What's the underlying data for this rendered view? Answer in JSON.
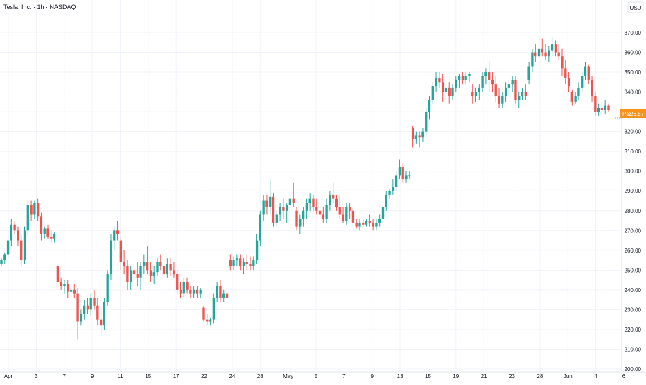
{
  "header": {
    "symbol_title": "Tesla, Inc. · 1h · NASDAQ",
    "currency": "USD"
  },
  "price_badge": {
    "label": "Pre",
    "value": "326.87"
  },
  "colors": {
    "up": "#26a69a",
    "down": "#ef5350",
    "pre_badge": "#f7931a",
    "grid": "#f0f3fa",
    "axis_text": "#131722"
  },
  "chart_data": {
    "type": "candlestick",
    "ylim": [
      200,
      375
    ],
    "y_ticks": [
      200,
      210,
      220,
      230,
      240,
      250,
      260,
      270,
      280,
      290,
      300,
      310,
      320,
      330,
      340,
      350,
      360,
      370
    ],
    "y_tick_labels": [
      "200.00",
      "210.00",
      "220.00",
      "230.00",
      "240.00",
      "250.00",
      "260.00",
      "270.00",
      "280.00",
      "290.00",
      "300.00",
      "310.00",
      "320.00",
      "330.00",
      "340.00",
      "350.00",
      "360.00",
      "370.00"
    ],
    "x_labels": [
      "Apr",
      "3",
      "7",
      "9",
      "11",
      "15",
      "17",
      "22",
      "24",
      "28",
      "May",
      "5",
      "7",
      "9",
      "13",
      "15",
      "19",
      "21",
      "23",
      "28",
      "Jun",
      "4",
      "6"
    ],
    "last_price": 326.87,
    "grid": true,
    "candles": [
      [
        253,
        256,
        252,
        255
      ],
      [
        255,
        259,
        253,
        258
      ],
      [
        258,
        267,
        256,
        265
      ],
      [
        265,
        276,
        262,
        273
      ],
      [
        273,
        275,
        268,
        270
      ],
      [
        270,
        272,
        262,
        265
      ],
      [
        265,
        268,
        252,
        255
      ],
      [
        255,
        272,
        253,
        270
      ],
      [
        270,
        285,
        268,
        283
      ],
      [
        283,
        285,
        275,
        278
      ],
      [
        278,
        285,
        276,
        284
      ],
      [
        284,
        286,
        275,
        277
      ],
      [
        277,
        279,
        265,
        268
      ],
      [
        268,
        272,
        266,
        271
      ],
      [
        271,
        273,
        266,
        267
      ],
      [
        267,
        270,
        264,
        266
      ],
      [
        266,
        269,
        264,
        268
      ],
      [
        252,
        253,
        242,
        244
      ],
      [
        244,
        246,
        240,
        242
      ],
      [
        242,
        245,
        238,
        243
      ],
      [
        243,
        245,
        236,
        239
      ],
      [
        239,
        242,
        235,
        240
      ],
      [
        240,
        243,
        236,
        238
      ],
      [
        238,
        241,
        215,
        224
      ],
      [
        224,
        230,
        222,
        228
      ],
      [
        228,
        235,
        225,
        232
      ],
      [
        232,
        236,
        228,
        230
      ],
      [
        230,
        238,
        227,
        236
      ],
      [
        236,
        240,
        230,
        232
      ],
      [
        232,
        236,
        222,
        225
      ],
      [
        225,
        230,
        218,
        222
      ],
      [
        222,
        236,
        220,
        234
      ],
      [
        234,
        250,
        232,
        248
      ],
      [
        248,
        268,
        245,
        265
      ],
      [
        265,
        272,
        260,
        270
      ],
      [
        270,
        275,
        265,
        268
      ],
      [
        265,
        267,
        250,
        254
      ],
      [
        254,
        260,
        248,
        252
      ],
      [
        252,
        255,
        240,
        244
      ],
      [
        244,
        252,
        240,
        250
      ],
      [
        250,
        256,
        246,
        248
      ],
      [
        248,
        254,
        242,
        246
      ],
      [
        246,
        254,
        240,
        252
      ],
      [
        252,
        258,
        248,
        254
      ],
      [
        254,
        262,
        248,
        250
      ],
      [
        250,
        254,
        244,
        247
      ],
      [
        247,
        252,
        243,
        249
      ],
      [
        249,
        256,
        247,
        254
      ],
      [
        254,
        258,
        250,
        252
      ],
      [
        252,
        255,
        246,
        248
      ],
      [
        248,
        256,
        246,
        253
      ],
      [
        253,
        256,
        247,
        250
      ],
      [
        250,
        254,
        246,
        248
      ],
      [
        248,
        250,
        238,
        240
      ],
      [
        240,
        244,
        236,
        238
      ],
      [
        238,
        246,
        236,
        244
      ],
      [
        244,
        246,
        238,
        240
      ],
      [
        240,
        242,
        236,
        238
      ],
      [
        238,
        242,
        236,
        240
      ],
      [
        240,
        242,
        236,
        238
      ],
      [
        238,
        241,
        236,
        240
      ],
      [
        231,
        232,
        224,
        225
      ],
      [
        225,
        228,
        222,
        224
      ],
      [
        224,
        226,
        222,
        225
      ],
      [
        225,
        238,
        223,
        236
      ],
      [
        236,
        244,
        234,
        242
      ],
      [
        242,
        245,
        234,
        236
      ],
      [
        236,
        240,
        234,
        238
      ],
      [
        238,
        240,
        234,
        236
      ],
      [
        255,
        258,
        250,
        252
      ],
      [
        252,
        257,
        250,
        255
      ],
      [
        255,
        258,
        252,
        256
      ],
      [
        256,
        258,
        250,
        252
      ],
      [
        252,
        256,
        248,
        254
      ],
      [
        254,
        258,
        250,
        253
      ],
      [
        253,
        257,
        250,
        252
      ],
      [
        252,
        257,
        250,
        255
      ],
      [
        255,
        268,
        253,
        265
      ],
      [
        265,
        280,
        262,
        278
      ],
      [
        278,
        288,
        275,
        285
      ],
      [
        285,
        288,
        278,
        282
      ],
      [
        282,
        296,
        278,
        287
      ],
      [
        287,
        289,
        272,
        274
      ],
      [
        274,
        280,
        272,
        278
      ],
      [
        278,
        284,
        275,
        282
      ],
      [
        282,
        286,
        276,
        280
      ],
      [
        280,
        284,
        274,
        283
      ],
      [
        283,
        288,
        278,
        286
      ],
      [
        286,
        294,
        282,
        284
      ],
      [
        280,
        282,
        270,
        272
      ],
      [
        272,
        278,
        268,
        276
      ],
      [
        276,
        282,
        272,
        280
      ],
      [
        280,
        286,
        276,
        284
      ],
      [
        284,
        289,
        280,
        286
      ],
      [
        286,
        288,
        280,
        282
      ],
      [
        282,
        286,
        278,
        280
      ],
      [
        280,
        284,
        276,
        278
      ],
      [
        278,
        282,
        274,
        276
      ],
      [
        276,
        286,
        274,
        283
      ],
      [
        283,
        290,
        280,
        288
      ],
      [
        288,
        294,
        284,
        286
      ],
      [
        286,
        288,
        280,
        282
      ],
      [
        282,
        288,
        276,
        278
      ],
      [
        278,
        282,
        274,
        275
      ],
      [
        275,
        284,
        273,
        282
      ],
      [
        282,
        284,
        276,
        280
      ],
      [
        280,
        282,
        272,
        274
      ],
      [
        274,
        276,
        271,
        272
      ],
      [
        272,
        276,
        270,
        274
      ],
      [
        274,
        276,
        272,
        273
      ],
      [
        273,
        276,
        272,
        275
      ],
      [
        275,
        278,
        272,
        274
      ],
      [
        274,
        276,
        270,
        272
      ],
      [
        272,
        276,
        270,
        274
      ],
      [
        274,
        278,
        272,
        276
      ],
      [
        276,
        285,
        274,
        282
      ],
      [
        282,
        290,
        280,
        288
      ],
      [
        288,
        291,
        286,
        290
      ],
      [
        290,
        296,
        288,
        292
      ],
      [
        292,
        300,
        290,
        298
      ],
      [
        298,
        306,
        296,
        302
      ],
      [
        302,
        304,
        294,
        296
      ],
      [
        296,
        300,
        294,
        298
      ],
      [
        298,
        300,
        296,
        298
      ],
      [
        322,
        323,
        312,
        316
      ],
      [
        316,
        320,
        314,
        318
      ],
      [
        318,
        320,
        312,
        317
      ],
      [
        317,
        322,
        315,
        320
      ],
      [
        320,
        332,
        318,
        330
      ],
      [
        330,
        338,
        326,
        336
      ],
      [
        336,
        345,
        334,
        343
      ],
      [
        343,
        350,
        340,
        347
      ],
      [
        347,
        350,
        342,
        345
      ],
      [
        345,
        349,
        335,
        340
      ],
      [
        340,
        344,
        336,
        342
      ],
      [
        342,
        345,
        334,
        338
      ],
      [
        338,
        344,
        336,
        342
      ],
      [
        342,
        348,
        340,
        346
      ],
      [
        346,
        349,
        342,
        348
      ],
      [
        348,
        350,
        344,
        346
      ],
      [
        346,
        350,
        344,
        348
      ],
      [
        348,
        350,
        345,
        349
      ],
      [
        340,
        344,
        334,
        338
      ],
      [
        338,
        342,
        335,
        340
      ],
      [
        340,
        344,
        336,
        342
      ],
      [
        342,
        350,
        340,
        348
      ],
      [
        348,
        352,
        344,
        350
      ],
      [
        350,
        355,
        340,
        346
      ],
      [
        346,
        350,
        340,
        344
      ],
      [
        344,
        348,
        335,
        338
      ],
      [
        338,
        342,
        332,
        334
      ],
      [
        334,
        340,
        332,
        338
      ],
      [
        338,
        345,
        335,
        342
      ],
      [
        342,
        346,
        338,
        344
      ],
      [
        344,
        348,
        340,
        346
      ],
      [
        346,
        348,
        334,
        336
      ],
      [
        336,
        340,
        332,
        338
      ],
      [
        338,
        342,
        336,
        340
      ],
      [
        340,
        344,
        336,
        338
      ],
      [
        346,
        355,
        344,
        353
      ],
      [
        353,
        362,
        350,
        360
      ],
      [
        360,
        364,
        355,
        358
      ],
      [
        358,
        366,
        356,
        362
      ],
      [
        362,
        367,
        358,
        360
      ],
      [
        360,
        364,
        356,
        358
      ],
      [
        358,
        363,
        355,
        361
      ],
      [
        361,
        368,
        358,
        364
      ],
      [
        364,
        366,
        358,
        360
      ],
      [
        360,
        364,
        356,
        358
      ],
      [
        358,
        362,
        348,
        352
      ],
      [
        352,
        356,
        344,
        347
      ],
      [
        347,
        350,
        340,
        343
      ],
      [
        340,
        341,
        333,
        335
      ],
      [
        335,
        340,
        334,
        338
      ],
      [
        338,
        345,
        336,
        342
      ],
      [
        342,
        350,
        340,
        348
      ],
      [
        348,
        355,
        346,
        353
      ],
      [
        353,
        354,
        344,
        346
      ],
      [
        346,
        348,
        335,
        338
      ],
      [
        338,
        340,
        328,
        330
      ],
      [
        330,
        334,
        328,
        332
      ],
      [
        332,
        334,
        329,
        331
      ],
      [
        331,
        336,
        329,
        333
      ],
      [
        333,
        334,
        330,
        331
      ]
    ]
  }
}
